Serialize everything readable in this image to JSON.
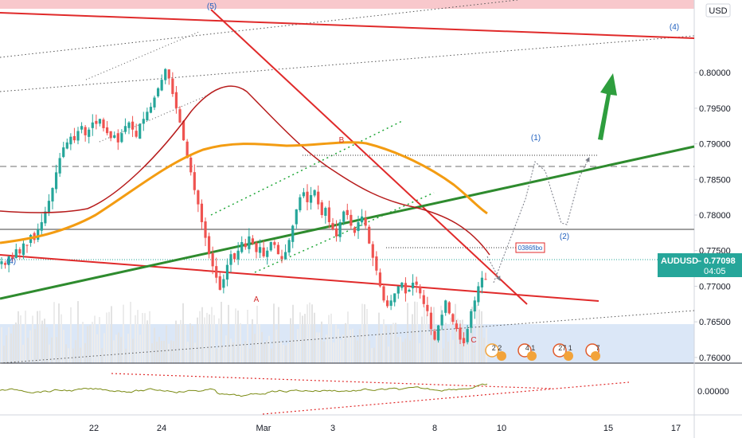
{
  "chart_data": {
    "type": "candlestick",
    "symbol": "AUDUSD",
    "currency": "USD",
    "last_price": "0.77098",
    "countdown": "04:05",
    "price_ticks": [
      "0.80000",
      "0.79500",
      "0.79000",
      "0.78500",
      "0.78000",
      "0.77500",
      "0.77000",
      "0.76500",
      "0.76000"
    ],
    "oscillator_ticks": [
      "0.00000"
    ],
    "date_ticks": [
      "22",
      "24",
      "Mar",
      "3",
      "8",
      "10",
      "15",
      "17"
    ],
    "ylim": [
      0.7592,
      0.8102
    ],
    "wave_labels": {
      "w5": "(5)",
      "w4_left": "(4)",
      "w4_right": "(4)",
      "w1": "(1)",
      "w2": "(2)",
      "A": "A",
      "B": "B",
      "C": "C"
    },
    "fib_label": "0386fibo",
    "event_badges": [
      "2 2",
      "4 1",
      "27 1",
      "7"
    ],
    "close_prices": [
      0.7735,
      0.773,
      0.7742,
      0.7738,
      0.7752,
      0.7746,
      0.776,
      0.7758,
      0.7772,
      0.7765,
      0.778,
      0.779,
      0.7805,
      0.782,
      0.7838,
      0.786,
      0.788,
      0.7895,
      0.7902,
      0.791,
      0.7905,
      0.7918,
      0.7925,
      0.7912,
      0.792,
      0.793,
      0.7928,
      0.7935,
      0.7922,
      0.7915,
      0.7908,
      0.7912,
      0.7902,
      0.7915,
      0.7925,
      0.793,
      0.792,
      0.791,
      0.7928,
      0.7935,
      0.7945,
      0.7952,
      0.7965,
      0.7978,
      0.799,
      0.8005,
      0.7992,
      0.797,
      0.795,
      0.793,
      0.7905,
      0.788,
      0.786,
      0.7835,
      0.7815,
      0.779,
      0.7768,
      0.7745,
      0.7728,
      0.7712,
      0.7695,
      0.771,
      0.773,
      0.7745,
      0.7738,
      0.775,
      0.7762,
      0.7755,
      0.777,
      0.776,
      0.7748,
      0.7755,
      0.7742,
      0.775,
      0.7762,
      0.7758,
      0.7745,
      0.7738,
      0.7748,
      0.7765,
      0.7785,
      0.7808,
      0.7825,
      0.7832,
      0.7818,
      0.7828,
      0.7835,
      0.7815,
      0.78,
      0.781,
      0.779,
      0.778,
      0.777,
      0.779,
      0.7805,
      0.78,
      0.7785,
      0.7775,
      0.779,
      0.7798,
      0.7785,
      0.776,
      0.774,
      0.7722,
      0.77,
      0.768,
      0.7672,
      0.768,
      0.769,
      0.77,
      0.7705,
      0.769,
      0.7695,
      0.7705,
      0.7702,
      0.769,
      0.7675,
      0.7665,
      0.764,
      0.7625,
      0.7645,
      0.766,
      0.768,
      0.7662,
      0.765,
      0.764,
      0.7625,
      0.762,
      0.764,
      0.7665,
      0.768,
      0.77,
      0.7712,
      0.771
    ]
  }
}
